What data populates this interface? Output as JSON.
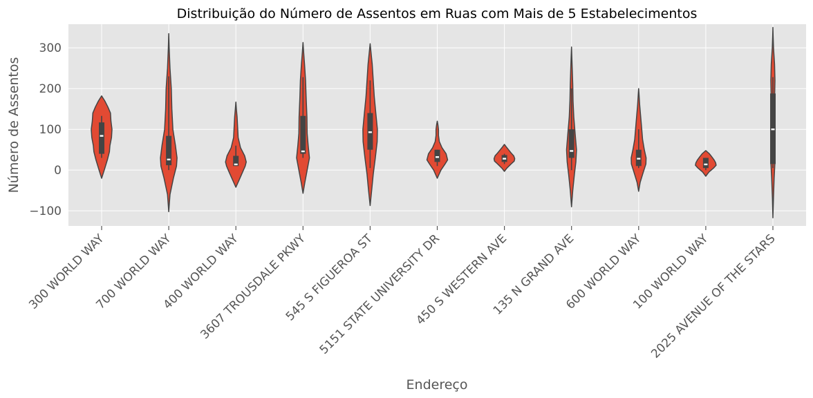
{
  "chart_data": {
    "type": "violin",
    "title": "Distribuição do Número de Assentos em Ruas com Mais de 5 Estabelecimentos",
    "xlabel": "Endereço",
    "ylabel": "Número de Assentos",
    "ylim": [
      -137,
      358
    ],
    "yticks": [
      -100,
      0,
      100,
      200,
      300
    ],
    "ytick_labels": [
      "−100",
      "0",
      "100",
      "200",
      "300"
    ],
    "grid": true,
    "categories": [
      "300 WORLD WAY",
      "700 WORLD WAY",
      "400 WORLD WAY",
      "3607 TROUSDALE PKWY",
      "545 S FIGUEROA ST",
      "5151 STATE UNIVERSITY DR",
      "450 S WESTERN AVE",
      "135 N GRAND AVE",
      "600 WORLD WAY",
      "100 WORLD WAY",
      "2025 AVENUE OF THE STARS"
    ],
    "violins": [
      {
        "min": -20,
        "max": 182,
        "q1": 40,
        "median": 84,
        "q3": 117,
        "whisker_low": 30,
        "whisker_high": 133,
        "profile": [
          [
            -20,
            0
          ],
          [
            0,
            0.25
          ],
          [
            25,
            0.55
          ],
          [
            45,
            0.75
          ],
          [
            60,
            0.8
          ],
          [
            80,
            0.95
          ],
          [
            100,
            1.0
          ],
          [
            120,
            0.9
          ],
          [
            140,
            0.85
          ],
          [
            155,
            0.6
          ],
          [
            170,
            0.3
          ],
          [
            182,
            0
          ]
        ]
      },
      {
        "min": -102,
        "max": 335,
        "q1": 12,
        "median": 26,
        "q3": 84,
        "whisker_low": 0,
        "whisker_high": 230,
        "profile": [
          [
            -102,
            0
          ],
          [
            -60,
            0.12
          ],
          [
            -20,
            0.45
          ],
          [
            10,
            0.75
          ],
          [
            30,
            0.8
          ],
          [
            60,
            0.65
          ],
          [
            100,
            0.4
          ],
          [
            150,
            0.3
          ],
          [
            200,
            0.25
          ],
          [
            250,
            0.12
          ],
          [
            300,
            0.04
          ],
          [
            335,
            0
          ]
        ]
      },
      {
        "min": -42,
        "max": 167,
        "q1": 10,
        "median": 14,
        "q3": 35,
        "whisker_low": 10,
        "whisker_high": 60,
        "profile": [
          [
            -42,
            0
          ],
          [
            -25,
            0.3
          ],
          [
            -5,
            0.65
          ],
          [
            10,
            0.9
          ],
          [
            20,
            1.0
          ],
          [
            35,
            0.85
          ],
          [
            55,
            0.45
          ],
          [
            80,
            0.22
          ],
          [
            100,
            0.18
          ],
          [
            130,
            0.12
          ],
          [
            150,
            0.05
          ],
          [
            167,
            0
          ]
        ]
      },
      {
        "min": -57,
        "max": 313,
        "q1": 40,
        "median": 46,
        "q3": 133,
        "whisker_low": 30,
        "whisker_high": 228,
        "profile": [
          [
            -57,
            0
          ],
          [
            -30,
            0.18
          ],
          [
            0,
            0.4
          ],
          [
            30,
            0.62
          ],
          [
            60,
            0.5
          ],
          [
            90,
            0.4
          ],
          [
            130,
            0.38
          ],
          [
            180,
            0.3
          ],
          [
            220,
            0.25
          ],
          [
            260,
            0.15
          ],
          [
            290,
            0.06
          ],
          [
            313,
            0
          ]
        ]
      },
      {
        "min": -87,
        "max": 310,
        "q1": 50,
        "median": 93,
        "q3": 140,
        "whisker_low": 5,
        "whisker_high": 220,
        "profile": [
          [
            -87,
            0
          ],
          [
            -50,
            0.15
          ],
          [
            -10,
            0.3
          ],
          [
            30,
            0.5
          ],
          [
            70,
            0.68
          ],
          [
            100,
            0.7
          ],
          [
            140,
            0.55
          ],
          [
            180,
            0.4
          ],
          [
            220,
            0.3
          ],
          [
            260,
            0.2
          ],
          [
            290,
            0.08
          ],
          [
            310,
            0
          ]
        ]
      },
      {
        "min": -20,
        "max": 120,
        "q1": 20,
        "median": 32,
        "q3": 50,
        "whisker_low": 10,
        "whisker_high": 50,
        "profile": [
          [
            -20,
            0
          ],
          [
            0,
            0.35
          ],
          [
            15,
            0.75
          ],
          [
            25,
            1.0
          ],
          [
            40,
            0.85
          ],
          [
            55,
            0.45
          ],
          [
            70,
            0.2
          ],
          [
            85,
            0.12
          ],
          [
            100,
            0.12
          ],
          [
            112,
            0.06
          ],
          [
            120,
            0
          ]
        ]
      },
      {
        "min": -3,
        "max": 63,
        "q1": 20,
        "median": 28,
        "q3": 37,
        "whisker_low": 15,
        "whisker_high": 40,
        "profile": [
          [
            -3,
            0
          ],
          [
            5,
            0.25
          ],
          [
            15,
            0.65
          ],
          [
            22,
            0.95
          ],
          [
            28,
            1.0
          ],
          [
            35,
            0.9
          ],
          [
            42,
            0.65
          ],
          [
            50,
            0.4
          ],
          [
            57,
            0.18
          ],
          [
            63,
            0
          ]
        ]
      },
      {
        "min": -90,
        "max": 302,
        "q1": 30,
        "median": 47,
        "q3": 100,
        "whisker_low": 0,
        "whisker_high": 200,
        "profile": [
          [
            -90,
            0
          ],
          [
            -50,
            0.12
          ],
          [
            -10,
            0.28
          ],
          [
            20,
            0.42
          ],
          [
            50,
            0.48
          ],
          [
            90,
            0.35
          ],
          [
            130,
            0.22
          ],
          [
            170,
            0.15
          ],
          [
            210,
            0.12
          ],
          [
            250,
            0.07
          ],
          [
            280,
            0.03
          ],
          [
            302,
            0
          ]
        ]
      },
      {
        "min": -52,
        "max": 200,
        "q1": 10,
        "median": 28,
        "q3": 50,
        "whisker_low": 5,
        "whisker_high": 100,
        "profile": [
          [
            -52,
            0
          ],
          [
            -30,
            0.15
          ],
          [
            -5,
            0.45
          ],
          [
            15,
            0.7
          ],
          [
            30,
            0.72
          ],
          [
            50,
            0.55
          ],
          [
            75,
            0.38
          ],
          [
            100,
            0.3
          ],
          [
            130,
            0.2
          ],
          [
            160,
            0.1
          ],
          [
            185,
            0.04
          ],
          [
            200,
            0
          ]
        ]
      },
      {
        "min": -15,
        "max": 48,
        "q1": 5,
        "median": 14,
        "q3": 30,
        "whisker_low": 0,
        "whisker_high": 30,
        "profile": [
          [
            -15,
            0
          ],
          [
            -5,
            0.3
          ],
          [
            5,
            0.75
          ],
          [
            12,
            1.0
          ],
          [
            18,
            0.95
          ],
          [
            25,
            0.8
          ],
          [
            32,
            0.6
          ],
          [
            40,
            0.35
          ],
          [
            48,
            0
          ]
        ]
      },
      {
        "min": -117,
        "max": 350,
        "q1": 15,
        "median": 100,
        "q3": 188,
        "whisker_low": 5,
        "whisker_high": 228,
        "profile": [
          [
            -117,
            0
          ],
          [
            -70,
            0.05
          ],
          [
            -20,
            0.12
          ],
          [
            20,
            0.2
          ],
          [
            70,
            0.18
          ],
          [
            120,
            0.14
          ],
          [
            170,
            0.16
          ],
          [
            220,
            0.2
          ],
          [
            260,
            0.16
          ],
          [
            300,
            0.06
          ],
          [
            330,
            0.02
          ],
          [
            350,
            0
          ]
        ]
      }
    ],
    "colors": {
      "violin_fill": "#E24A33",
      "violin_edge": "#444444",
      "box": "#444444",
      "median": "#ffffff",
      "plot_bg": "#E5E5E5",
      "grid": "#ffffff"
    }
  }
}
